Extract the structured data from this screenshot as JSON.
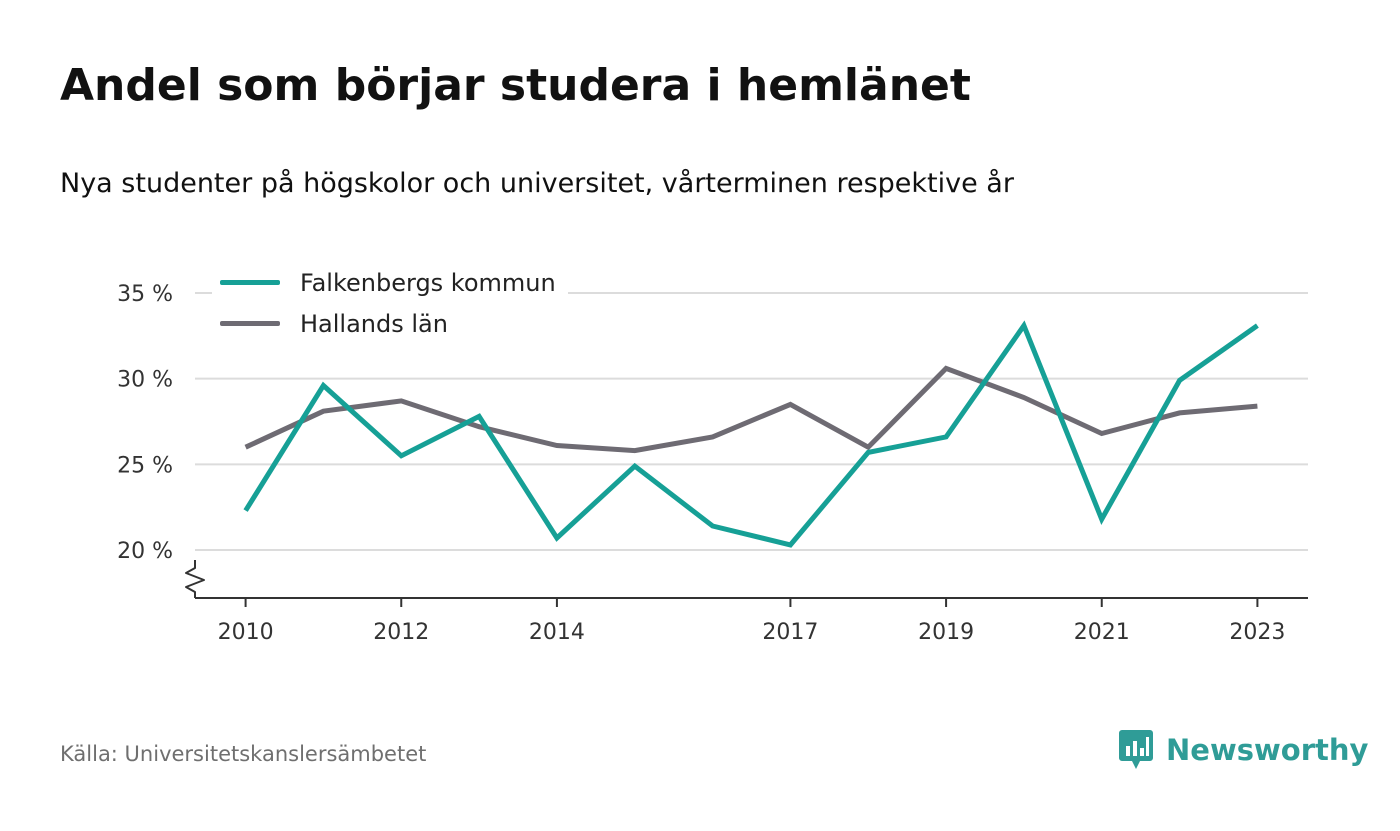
{
  "header": {
    "title": "Andel som börjar studera i hemlänet",
    "subtitle": "Nya studenter på högskolor och universitet, vårterminen respektive år"
  },
  "footer": {
    "source": "Källa: Universitetskanslersämbetet",
    "brand": "Newsworthy",
    "brand_color": "#2f9c97"
  },
  "colors": {
    "falkenberg": "#16a096",
    "halland": "#6e6b73",
    "grid": "#dcdcdc",
    "axis": "#333333"
  },
  "chart_data": {
    "type": "line",
    "title": "Andel som börjar studera i hemlänet",
    "subtitle": "Nya studenter på högskolor och universitet, vårterminen respektive år",
    "xlabel": "",
    "ylabel": "",
    "x": [
      2010,
      2011,
      2012,
      2013,
      2014,
      2015,
      2016,
      2017,
      2018,
      2019,
      2020,
      2021,
      2022,
      2023
    ],
    "x_tick_labels": [
      "2010",
      "2012",
      "2014",
      "2017",
      "2019",
      "2021",
      "2023"
    ],
    "x_tick_values": [
      2010,
      2012,
      2014,
      2017,
      2019,
      2021,
      2023
    ],
    "xlim": [
      2009.35,
      2023.65
    ],
    "y_ticks": [
      20,
      25,
      30,
      35
    ],
    "y_tick_labels": [
      "20 %",
      "25 %",
      "30 %",
      "35 %"
    ],
    "ylim": [
      17.2,
      35
    ],
    "y_axis_break": true,
    "grid": true,
    "legend_position": "top-left",
    "series": [
      {
        "name": "Falkenbergs kommun",
        "color": "#16a096",
        "values": [
          22.3,
          29.6,
          25.5,
          27.8,
          20.7,
          24.9,
          21.4,
          20.3,
          25.7,
          26.6,
          33.1,
          21.8,
          29.9,
          33.1
        ]
      },
      {
        "name": "Hallands län",
        "color": "#6e6b73",
        "values": [
          26.0,
          28.1,
          28.7,
          27.2,
          26.1,
          25.8,
          26.6,
          28.5,
          26.0,
          30.6,
          28.9,
          26.8,
          28.0,
          28.4
        ]
      }
    ]
  }
}
